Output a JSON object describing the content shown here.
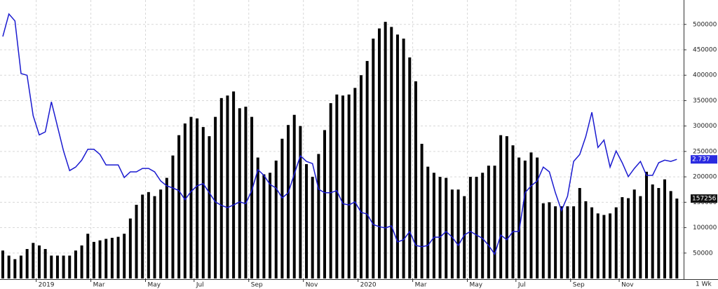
{
  "chart_data": {
    "type": "bar-line",
    "categories": [
      null,
      null,
      null,
      null,
      null,
      null,
      "2019",
      null,
      null,
      null,
      null,
      null,
      null,
      null,
      null,
      "Mar",
      null,
      null,
      null,
      null,
      null,
      null,
      null,
      null,
      "May",
      null,
      null,
      null,
      null,
      null,
      null,
      null,
      "Jul",
      null,
      null,
      null,
      null,
      null,
      null,
      null,
      null,
      "Sep",
      null,
      null,
      null,
      null,
      null,
      null,
      null,
      null,
      "Nov",
      null,
      null,
      null,
      null,
      null,
      null,
      null,
      null,
      "2020",
      null,
      null,
      null,
      null,
      null,
      null,
      null,
      null,
      "Mar",
      null,
      null,
      null,
      null,
      null,
      null,
      null,
      null,
      "May",
      null,
      null,
      null,
      null,
      null,
      null,
      null,
      "Jul",
      null,
      null,
      null,
      null,
      null,
      null,
      null,
      null,
      "Sep",
      null,
      null,
      null,
      null,
      null,
      null,
      null,
      "Nov",
      null,
      null,
      null,
      null,
      null,
      null,
      null,
      null,
      null
    ],
    "series": [
      {
        "color": "#000000",
        "values": [
          55000,
          45000,
          38000,
          45000,
          58000,
          70000,
          65000,
          58000,
          45000,
          45000,
          45000,
          45000,
          55000,
          65000,
          88000,
          72000,
          75000,
          78000,
          80000,
          82000,
          88000,
          118000,
          145000,
          165000,
          170000,
          162000,
          175000,
          198000,
          242000,
          282000,
          305000,
          318000,
          315000,
          298000,
          280000,
          318000,
          355000,
          360000,
          368000,
          335000,
          338000,
          318000,
          238000,
          205000,
          208000,
          232000,
          275000,
          302000,
          322000,
          300000,
          225000,
          200000,
          245000,
          292000,
          345000,
          362000,
          360000,
          362000,
          375000,
          400000,
          428000,
          472000,
          492000,
          505000,
          495000,
          480000,
          472000,
          435000,
          388000,
          265000,
          220000,
          208000,
          200000,
          198000,
          175000,
          175000,
          162000,
          200000,
          200000,
          208000,
          222000,
          222000,
          282000,
          280000,
          262000,
          238000,
          232000,
          248000,
          238000,
          148000,
          150000,
          142000,
          142000,
          142000,
          142000,
          178000,
          152000,
          140000,
          128000,
          125000,
          128000,
          140000,
          160000,
          158000,
          175000,
          162000,
          210000,
          185000,
          178000,
          195000,
          172000,
          157256
        ]
      },
      {
        "color": "#1a1ad0",
        "axis": "y2",
        "values": [
          5.56,
          6.08,
          5.92,
          4.71,
          4.67,
          3.74,
          3.3,
          3.37,
          4.06,
          3.5,
          2.93,
          2.48,
          2.56,
          2.72,
          2.97,
          2.97,
          2.85,
          2.61,
          2.61,
          2.61,
          2.32,
          2.45,
          2.45,
          2.53,
          2.53,
          2.45,
          2.24,
          2.13,
          2.08,
          2.02,
          1.81,
          2.0,
          2.13,
          2.18,
          1.97,
          1.76,
          1.68,
          1.63,
          1.69,
          1.76,
          1.72,
          2.02,
          2.5,
          2.37,
          2.16,
          2.08,
          1.85,
          1.97,
          2.4,
          2.82,
          2.69,
          2.64,
          2.05,
          1.97,
          1.97,
          2.02,
          1.72,
          1.69,
          1.76,
          1.52,
          1.48,
          1.24,
          1.19,
          1.16,
          1.21,
          0.84,
          0.89,
          1.08,
          0.76,
          0.73,
          0.76,
          0.95,
          0.95,
          1.08,
          0.95,
          0.76,
          1.0,
          1.08,
          1.0,
          0.92,
          0.76,
          0.56,
          1.0,
          0.89,
          1.08,
          1.08,
          1.97,
          2.13,
          2.24,
          2.56,
          2.45,
          1.97,
          1.56,
          1.89,
          2.69,
          2.85,
          3.26,
          3.82,
          3.01,
          3.18,
          2.56,
          2.93,
          2.66,
          2.34,
          2.53,
          2.69,
          2.37,
          2.37,
          2.66,
          2.72,
          2.69,
          2.737
        ]
      }
    ],
    "ylim": [
      0,
      548000
    ],
    "yticks": [
      50000,
      100000,
      150000,
      200000,
      250000,
      300000,
      350000,
      400000,
      450000,
      500000
    ],
    "y2lim": [
      0,
      6.4
    ],
    "grid": true,
    "interval_label": "1 Wk"
  }
}
